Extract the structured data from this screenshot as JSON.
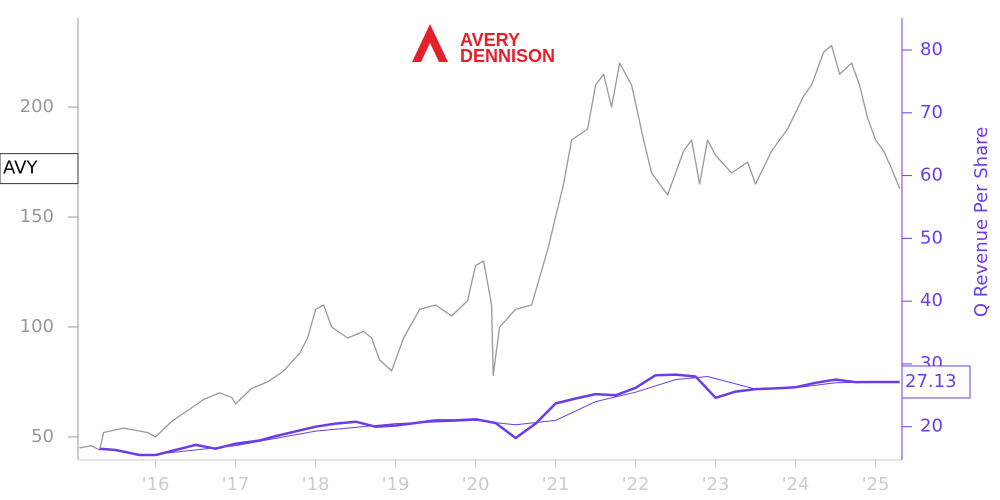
{
  "chart_data": {
    "type": "line",
    "logo": [
      "AVERY",
      "DENNISON"
    ],
    "y2_label": "Q Revenue Per Share",
    "xlim": [
      2015.03,
      2025.33
    ],
    "xticks": [
      {
        "value": 2016,
        "label": "'16"
      },
      {
        "value": 2017,
        "label": "'17"
      },
      {
        "value": 2018,
        "label": "'18"
      },
      {
        "value": 2019,
        "label": "'19"
      },
      {
        "value": 2020,
        "label": "'20"
      },
      {
        "value": 2021,
        "label": "'21"
      },
      {
        "value": 2022,
        "label": "'22"
      },
      {
        "value": 2023,
        "label": "'23"
      },
      {
        "value": 2024,
        "label": "'24"
      },
      {
        "value": 2025,
        "label": "'25"
      }
    ],
    "ylim": [
      39.5,
      240.5
    ],
    "yticks": [
      50,
      100,
      150,
      200
    ],
    "y2lim": [
      14.7,
      85.1
    ],
    "y2ticks": [
      20,
      30,
      40,
      50,
      60,
      70,
      80
    ],
    "series": [
      {
        "name": "AVY",
        "color": "#999999",
        "label_at": 172,
        "x": [
          2015.05,
          2015.2,
          2015.3,
          2015.35,
          2015.6,
          2015.9,
          2016.0,
          2016.2,
          2016.4,
          2016.6,
          2016.8,
          2016.95,
          2017.0,
          2017.2,
          2017.4,
          2017.6,
          2017.8,
          2017.9,
          2018.0,
          2018.1,
          2018.2,
          2018.4,
          2018.6,
          2018.7,
          2018.8,
          2018.95,
          2019.1,
          2019.3,
          2019.5,
          2019.7,
          2019.9,
          2020.0,
          2020.1,
          2020.2,
          2020.22,
          2020.3,
          2020.5,
          2020.7,
          2020.9,
          2021.0,
          2021.1,
          2021.2,
          2021.4,
          2021.5,
          2021.6,
          2021.7,
          2021.8,
          2021.95,
          2022.1,
          2022.2,
          2022.4,
          2022.6,
          2022.7,
          2022.8,
          2022.9,
          2023.0,
          2023.2,
          2023.4,
          2023.5,
          2023.7,
          2023.9,
          2024.1,
          2024.2,
          2024.35,
          2024.45,
          2024.55,
          2024.7,
          2024.8,
          2024.9,
          2025.0,
          2025.1,
          2025.2,
          2025.3
        ],
        "values": [
          45,
          46,
          44,
          52,
          54,
          52,
          50,
          57,
          62,
          67,
          70,
          68,
          65,
          72,
          75,
          80,
          88,
          95,
          108,
          110,
          100,
          95,
          98,
          95,
          85,
          80,
          95,
          108,
          110,
          105,
          112,
          128,
          130,
          110,
          78,
          100,
          108,
          110,
          135,
          150,
          165,
          185,
          190,
          210,
          215,
          200,
          220,
          210,
          185,
          170,
          160,
          180,
          185,
          165,
          185,
          178,
          170,
          175,
          165,
          180,
          190,
          205,
          210,
          225,
          228,
          215,
          220,
          210,
          195,
          185,
          180,
          172,
          163
        ]
      },
      {
        "name": "Q Revenue Per Share",
        "color": "#6a3de8",
        "axis": "y2",
        "width": 2.5,
        "x": [
          2015.3,
          2015.5,
          2015.8,
          2016.0,
          2016.5,
          2016.75,
          2017.0,
          2017.3,
          2017.5,
          2018.0,
          2018.25,
          2018.5,
          2018.75,
          2019.0,
          2019.25,
          2019.5,
          2019.75,
          2020.0,
          2020.25,
          2020.5,
          2020.75,
          2021.0,
          2021.25,
          2021.5,
          2021.75,
          2022.0,
          2022.25,
          2022.5,
          2022.75,
          2023.0,
          2023.25,
          2023.5,
          2023.75,
          2024.0,
          2024.25,
          2024.5,
          2024.75,
          2025.0,
          2025.3
        ],
        "values": [
          16.5,
          16.3,
          15.5,
          15.5,
          17.1,
          16.5,
          17.3,
          17.8,
          18.5,
          20,
          20.5,
          20.8,
          20,
          20.2,
          20.6,
          21,
          21,
          21.2,
          20.6,
          18.2,
          20.5,
          23.7,
          24.5,
          25.2,
          25,
          26.2,
          28.2,
          28.3,
          28,
          24.6,
          25.6,
          26,
          26.1,
          26.3,
          27,
          27.5,
          27.1,
          27.13,
          27.13
        ]
      },
      {
        "color": "#6a3de8",
        "axis": "y2",
        "width": 1,
        "x": [
          2016.0,
          2017.0,
          2018.0,
          2019.0,
          2020.0,
          2020.5,
          2021.0,
          2021.5,
          2022.0,
          2022.5,
          2022.9,
          2023.5,
          2024.0,
          2024.5,
          2025.0,
          2025.3
        ],
        "values": [
          15.6,
          17,
          19.3,
          20.5,
          21,
          20.3,
          21,
          24,
          25.5,
          27.5,
          28,
          26,
          26.2,
          27,
          27.1,
          27.13
        ]
      }
    ]
  }
}
